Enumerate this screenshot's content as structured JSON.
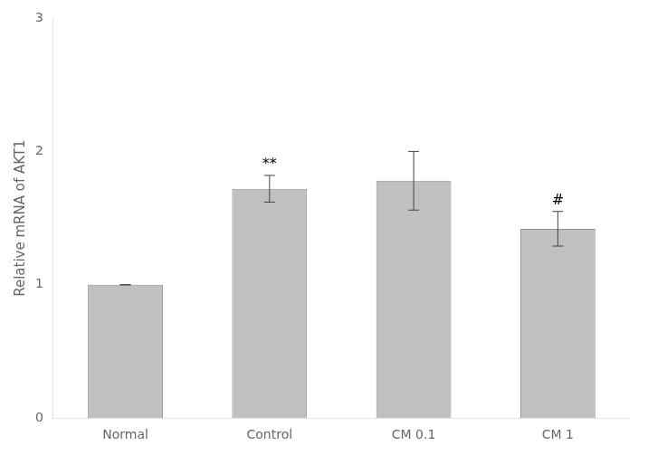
{
  "chart_data": {
    "type": "bar",
    "categories": [
      "Normal",
      "Control",
      "CM 0.1",
      "CM 1"
    ],
    "values": [
      1.0,
      1.72,
      1.78,
      1.42
    ],
    "errors": [
      0.0,
      0.1,
      0.22,
      0.13
    ],
    "color": "#C0C0C0",
    "ylabel": "Relative mRNA of AKT1",
    "ylim": [
      0,
      3
    ],
    "yticks": [
      0,
      1,
      2,
      3
    ],
    "grid": false,
    "annotations": [
      {
        "x": "Control",
        "text": "**"
      },
      {
        "x": "CM 1",
        "text": "#"
      }
    ]
  }
}
